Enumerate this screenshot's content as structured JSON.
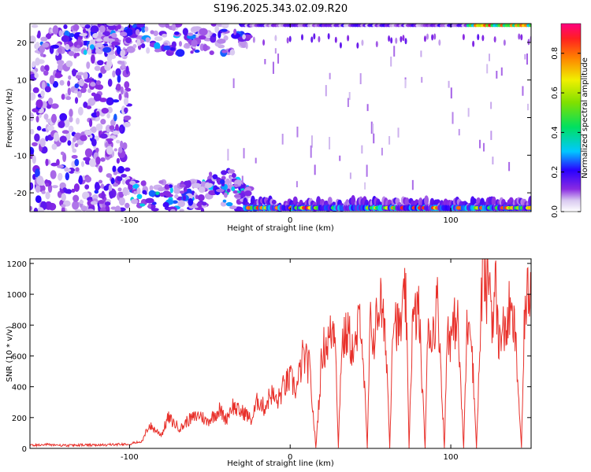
{
  "title": "S196.2025.343.02.09.R20",
  "colors": {
    "snr_line": "#e8302a",
    "frame": "#000000",
    "background": "#ffffff"
  },
  "chart_data": [
    {
      "type": "heatmap",
      "title": "S196.2025.343.02.09.R20",
      "xlabel": "Height of straight line (km)",
      "ylabel": "Frequency (Hz)",
      "xlim": [
        -162,
        150
      ],
      "ylim": [
        -25,
        25
      ],
      "xticks": [
        -100,
        0,
        100
      ],
      "yticks": [
        -20,
        -10,
        0,
        10,
        20
      ],
      "grid": false,
      "colorbar": {
        "label": "Normalized spectral amplitude",
        "range": [
          0.0,
          0.95
        ],
        "ticks": [
          0.0,
          0.2,
          0.4,
          0.6,
          0.8
        ],
        "colormap": "rainbow (violet-blue-cyan-green-yellow-orange-red-magenta)"
      },
      "features": [
        {
          "region": "x -162 to -100, all frequencies",
          "amplitude": "low (0.05-0.2), scattered"
        },
        {
          "region": "x -100 to -30, near +/-22 Hz",
          "amplitude": "low to medium (0.1-0.3)"
        },
        {
          "region": "x -30 to 150, near -24 Hz",
          "amplitude": "high bands up to ~0.9"
        },
        {
          "region": "x 110 to 150, near +24 Hz",
          "amplitude": "high bands up to ~0.9"
        }
      ]
    },
    {
      "type": "line",
      "xlabel": "Height of straight line (km)",
      "ylabel": "SNR (10 * v/v)",
      "xlim": [
        -162,
        150
      ],
      "ylim": [
        0,
        1230
      ],
      "xticks": [
        -100,
        0,
        100
      ],
      "yticks": [
        0,
        200,
        400,
        600,
        800,
        1000,
        1200
      ],
      "grid": false,
      "series": [
        {
          "x": [
            -162,
            -150,
            -140,
            -130,
            -120,
            -110,
            -100,
            -92,
            -88,
            -84,
            -80,
            -76,
            -72,
            -68,
            -64,
            -60,
            -56,
            -52,
            -48,
            -44,
            -40,
            -36,
            -32,
            -28,
            -24,
            -20,
            -16,
            -12,
            -8,
            -4,
            0,
            4,
            8,
            12,
            16,
            20,
            24,
            28,
            30,
            32,
            36,
            40,
            44,
            48,
            50,
            52,
            56,
            60,
            62,
            64,
            68,
            72,
            74,
            76,
            80,
            84,
            86,
            88,
            92,
            96,
            98,
            100,
            104,
            108,
            110,
            112,
            116,
            120,
            122,
            124,
            126,
            128,
            130,
            132,
            134,
            136,
            140,
            144,
            146,
            148,
            150
          ],
          "values": [
            20,
            25,
            18,
            22,
            20,
            25,
            30,
            45,
            150,
            120,
            90,
            200,
            160,
            130,
            180,
            200,
            220,
            170,
            210,
            250,
            190,
            280,
            240,
            230,
            180,
            320,
            260,
            360,
            300,
            400,
            450,
            380,
            600,
            520,
            5,
            640,
            700,
            820,
            5,
            680,
            750,
            600,
            900,
            5,
            840,
            700,
            980,
            620,
            5,
            900,
            750,
            1000,
            5,
            780,
            920,
            5,
            850,
            700,
            960,
            5,
            820,
            700,
            880,
            5,
            760,
            920,
            5,
            1230,
            980,
            1150,
            820,
            1050,
            640,
            860,
            700,
            900,
            750,
            5,
            880,
            1000,
            1080
          ]
        }
      ]
    }
  ]
}
